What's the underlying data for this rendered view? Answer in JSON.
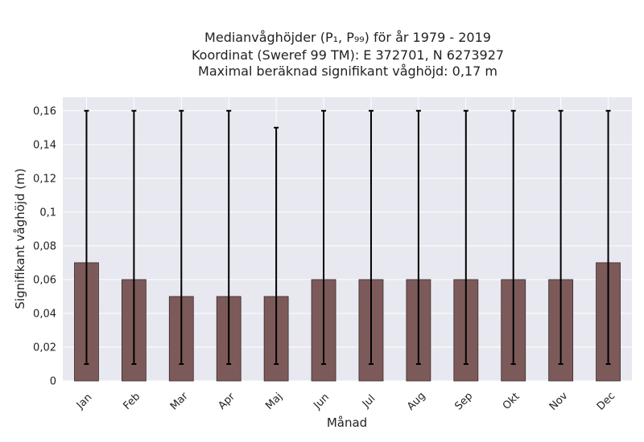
{
  "chart_data": {
    "type": "bar",
    "title_lines": [
      "Medianvåghöjder (P₁, P₉₉) för år 1979 - 2019",
      "Koordinat (Sweref 99 TM): E 372701, N 6273927",
      "Maximal beräknad signifikant våghöjd: 0,17 m"
    ],
    "xlabel": "Månad",
    "ylabel": "Signifikant våghöjd (m)",
    "categories": [
      "Jan",
      "Feb",
      "Mar",
      "Apr",
      "Maj",
      "Jun",
      "Jul",
      "Aug",
      "Sep",
      "Okt",
      "Nov",
      "Dec"
    ],
    "values": [
      0.07,
      0.06,
      0.05,
      0.05,
      0.05,
      0.06,
      0.06,
      0.06,
      0.06,
      0.06,
      0.06,
      0.07
    ],
    "p1": [
      0.01,
      0.01,
      0.01,
      0.01,
      0.01,
      0.01,
      0.01,
      0.01,
      0.01,
      0.01,
      0.01,
      0.01
    ],
    "p99": [
      0.16,
      0.16,
      0.16,
      0.16,
      0.15,
      0.16,
      0.16,
      0.16,
      0.16,
      0.16,
      0.16,
      0.16
    ],
    "ylim": [
      0,
      0.168
    ],
    "yticks": [
      0,
      0.02,
      0.04,
      0.06,
      0.08,
      0.1,
      0.12,
      0.14,
      0.16
    ],
    "ytick_labels": [
      "0",
      "0,02",
      "0,04",
      "0,06",
      "0,08",
      "0,1",
      "0,12",
      "0,14",
      "0,16"
    ],
    "grid": true,
    "colors": {
      "bar": "#7d5a5a",
      "bar_edge": "#3a2a2a",
      "errorbar": "#000000",
      "plot_background": "#e8e8f0",
      "grid": "#ffffff"
    }
  }
}
